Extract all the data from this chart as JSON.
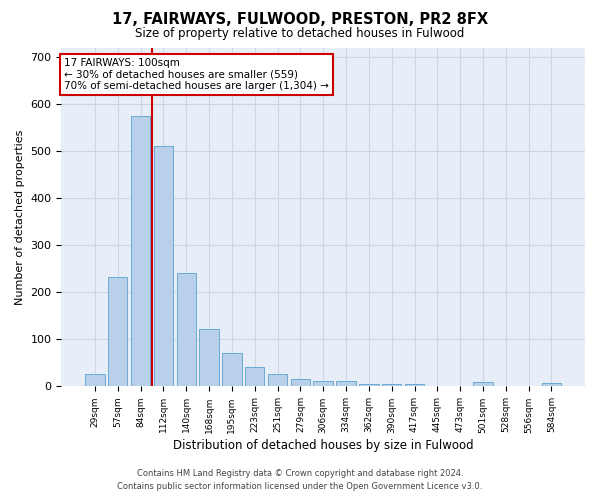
{
  "title": "17, FAIRWAYS, FULWOOD, PRESTON, PR2 8FX",
  "subtitle": "Size of property relative to detached houses in Fulwood",
  "xlabel": "Distribution of detached houses by size in Fulwood",
  "ylabel": "Number of detached properties",
  "categories": [
    "29sqm",
    "57sqm",
    "84sqm",
    "112sqm",
    "140sqm",
    "168sqm",
    "195sqm",
    "223sqm",
    "251sqm",
    "279sqm",
    "306sqm",
    "334sqm",
    "362sqm",
    "390sqm",
    "417sqm",
    "445sqm",
    "473sqm",
    "501sqm",
    "528sqm",
    "556sqm",
    "584sqm"
  ],
  "values": [
    27,
    232,
    575,
    510,
    240,
    123,
    72,
    41,
    26,
    16,
    11,
    11,
    6,
    5,
    5,
    0,
    0,
    10,
    0,
    0,
    8
  ],
  "bar_color": "#b8d0ea",
  "bar_edge_color": "#6aaad4",
  "grid_color": "#ccd6e8",
  "bg_color": "#e8eef8",
  "vline_x_index": 2,
  "vline_color": "#cc0000",
  "annotation_text": "17 FAIRWAYS: 100sqm\n← 30% of detached houses are smaller (559)\n70% of semi-detached houses are larger (1,304) →",
  "annotation_box_color": "#cc0000",
  "footer_line1": "Contains HM Land Registry data © Crown copyright and database right 2024.",
  "footer_line2": "Contains public sector information licensed under the Open Government Licence v3.0.",
  "ylim": [
    0,
    720
  ],
  "yticks": [
    0,
    100,
    200,
    300,
    400,
    500,
    600,
    700
  ]
}
